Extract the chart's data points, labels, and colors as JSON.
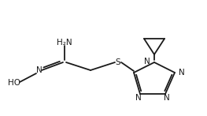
{
  "bg_color": "#ffffff",
  "line_color": "#1a1a1a",
  "text_color": "#1a1a1a",
  "figsize": [
    2.63,
    1.47
  ],
  "dpi": 100,
  "lw": 1.3,
  "font_size": 7.5,
  "xlim": [
    0,
    263
  ],
  "ylim": [
    0,
    147
  ]
}
